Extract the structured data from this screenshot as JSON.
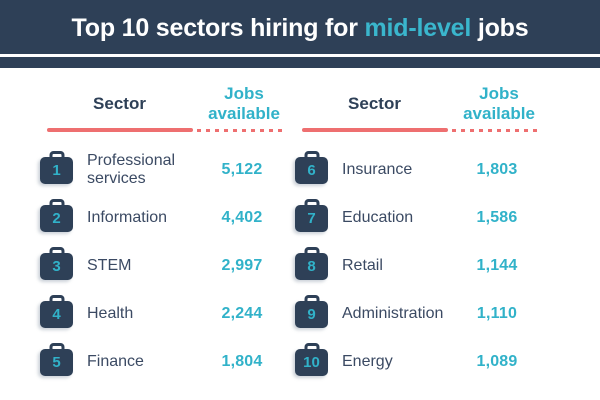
{
  "title": {
    "prefix": "Top 10 sectors hiring for",
    "highlight": "mid-level",
    "suffix": "jobs"
  },
  "column_headers": {
    "sector": "Sector",
    "jobs": "Jobs available"
  },
  "tables": [
    {
      "rows": [
        {
          "rank": "1",
          "sector": "Professional services",
          "jobs": "5,122"
        },
        {
          "rank": "2",
          "sector": "Information",
          "jobs": "4,402"
        },
        {
          "rank": "3",
          "sector": "STEM",
          "jobs": "2,997"
        },
        {
          "rank": "4",
          "sector": "Health",
          "jobs": "2,244"
        },
        {
          "rank": "5",
          "sector": "Finance",
          "jobs": "1,804"
        }
      ]
    },
    {
      "rows": [
        {
          "rank": "6",
          "sector": "Insurance",
          "jobs": "1,803"
        },
        {
          "rank": "7",
          "sector": "Education",
          "jobs": "1,586"
        },
        {
          "rank": "8",
          "sector": "Retail",
          "jobs": "1,144"
        },
        {
          "rank": "9",
          "sector": "Administration",
          "jobs": "1,110"
        },
        {
          "rank": "10",
          "sector": "Energy",
          "jobs": "1,089"
        }
      ]
    }
  ],
  "colors": {
    "banner_navy": "#2e4057",
    "highlight_teal": "#3ab6cd",
    "value_teal": "#31b2c9",
    "underline_salmon": "#ee6f70",
    "label_navy": "#3b4a63",
    "background": "#ffffff"
  },
  "icons": {
    "rank_badge": "briefcase-icon"
  },
  "chart_data": {
    "type": "table",
    "title": "Top 10 sectors hiring for mid-level jobs",
    "columns": [
      "Rank",
      "Sector",
      "Jobs available"
    ],
    "rows": [
      [
        1,
        "Professional services",
        5122
      ],
      [
        2,
        "Information",
        4402
      ],
      [
        3,
        "STEM",
        2997
      ],
      [
        4,
        "Health",
        2244
      ],
      [
        5,
        "Finance",
        1804
      ],
      [
        6,
        "Insurance",
        1803
      ],
      [
        7,
        "Education",
        1586
      ],
      [
        8,
        "Retail",
        1144
      ],
      [
        9,
        "Administration",
        1110
      ],
      [
        10,
        "Energy",
        1089
      ]
    ]
  }
}
